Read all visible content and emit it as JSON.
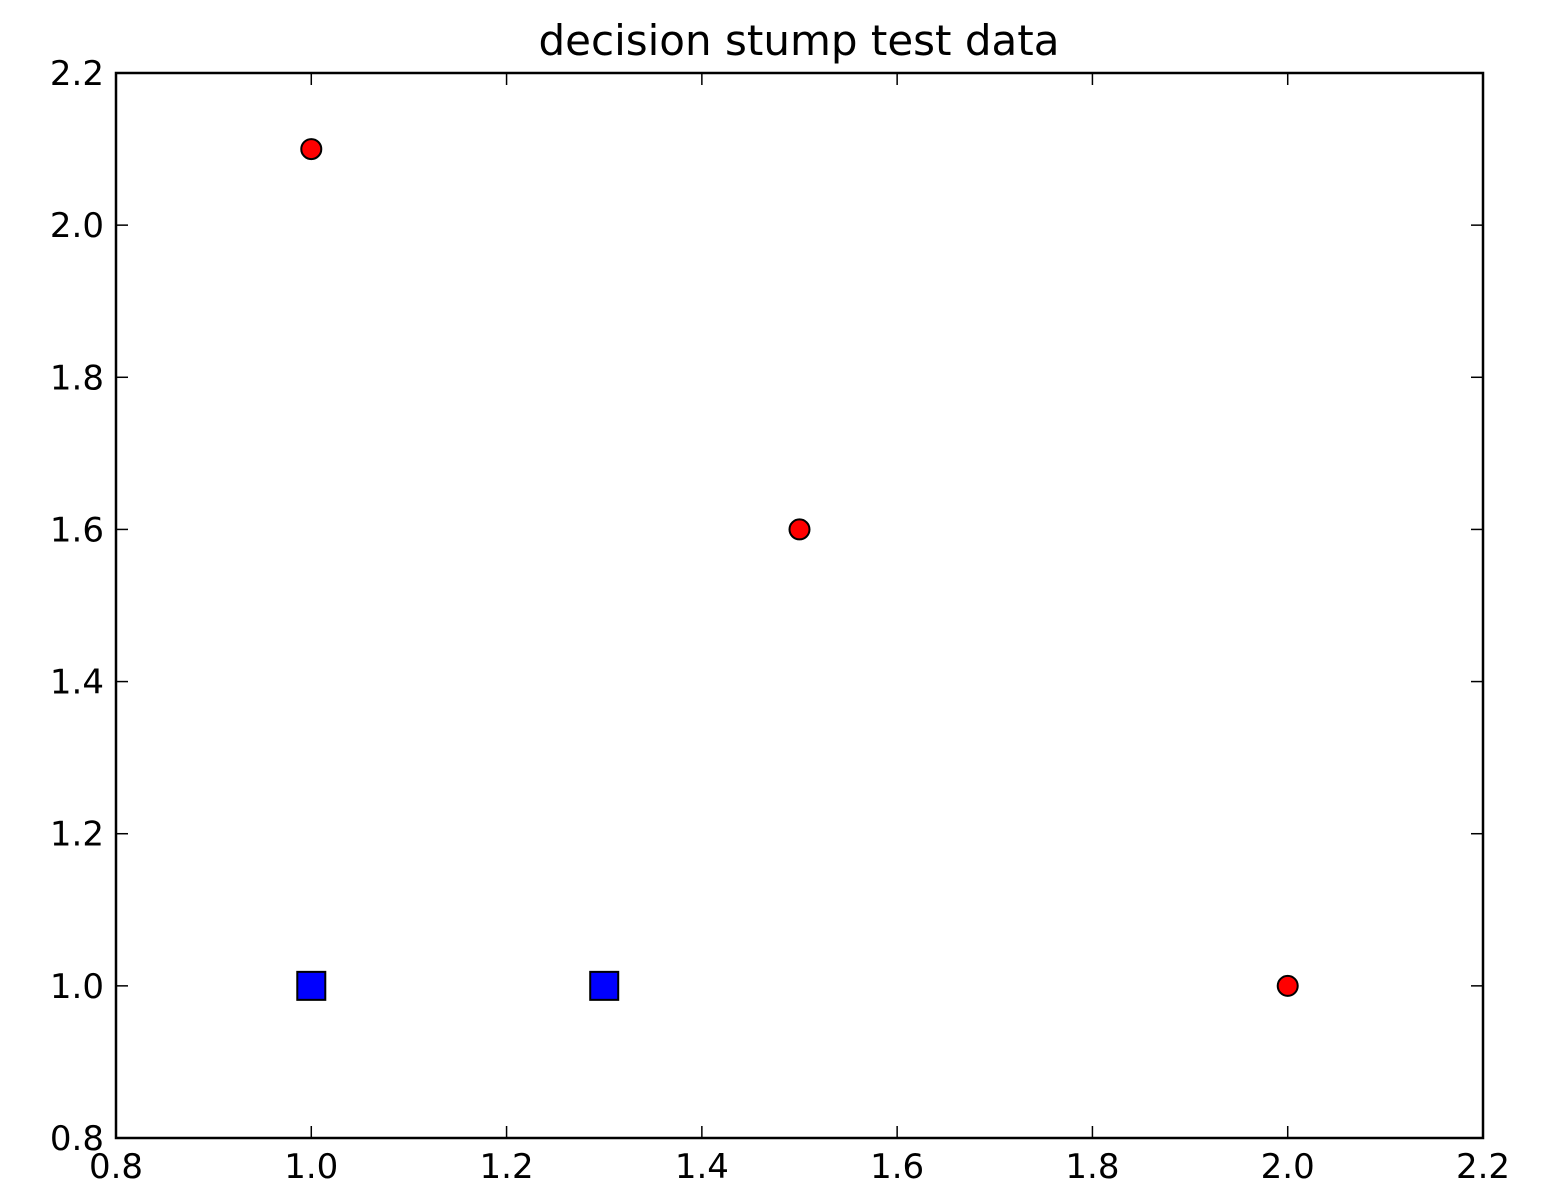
{
  "chart_data": {
    "type": "scatter",
    "title": "decision stump test data",
    "xlabel": "",
    "ylabel": "",
    "xlim": [
      0.8,
      2.2
    ],
    "ylim": [
      0.8,
      2.2
    ],
    "x_ticks": [
      "0.8",
      "1.0",
      "1.2",
      "1.4",
      "1.6",
      "1.8",
      "2.0",
      "2.2"
    ],
    "y_ticks": [
      "0.8",
      "1.0",
      "1.2",
      "1.4",
      "1.6",
      "1.8",
      "2.0",
      "2.2"
    ],
    "grid": false,
    "legend": "none",
    "series": [
      {
        "marker": "circle",
        "color": "#ff0000",
        "points": [
          {
            "x": 1.0,
            "y": 2.1
          },
          {
            "x": 1.5,
            "y": 1.6
          },
          {
            "x": 2.0,
            "y": 1.0
          }
        ]
      },
      {
        "marker": "square",
        "color": "#0000ff",
        "points": [
          {
            "x": 1.0,
            "y": 1.0
          },
          {
            "x": 1.3,
            "y": 1.0
          }
        ]
      }
    ]
  }
}
